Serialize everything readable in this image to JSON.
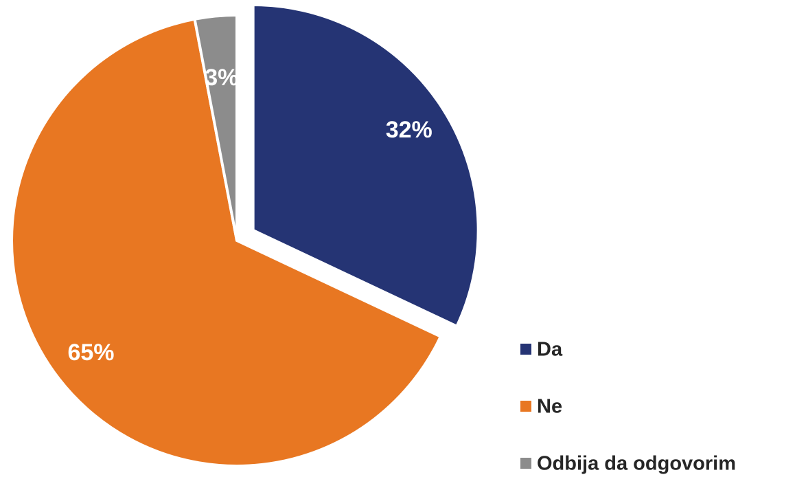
{
  "chart_data": {
    "type": "pie",
    "categories": [
      "Da",
      "Ne",
      "Odbija da odgovorim"
    ],
    "values": [
      32,
      65,
      3
    ],
    "value_labels": [
      "32%",
      "65%",
      "3%"
    ],
    "colors": [
      "#253474",
      "#e87722",
      "#8c8c8c"
    ],
    "exploded": [
      true,
      false,
      false
    ],
    "legend": "right"
  }
}
